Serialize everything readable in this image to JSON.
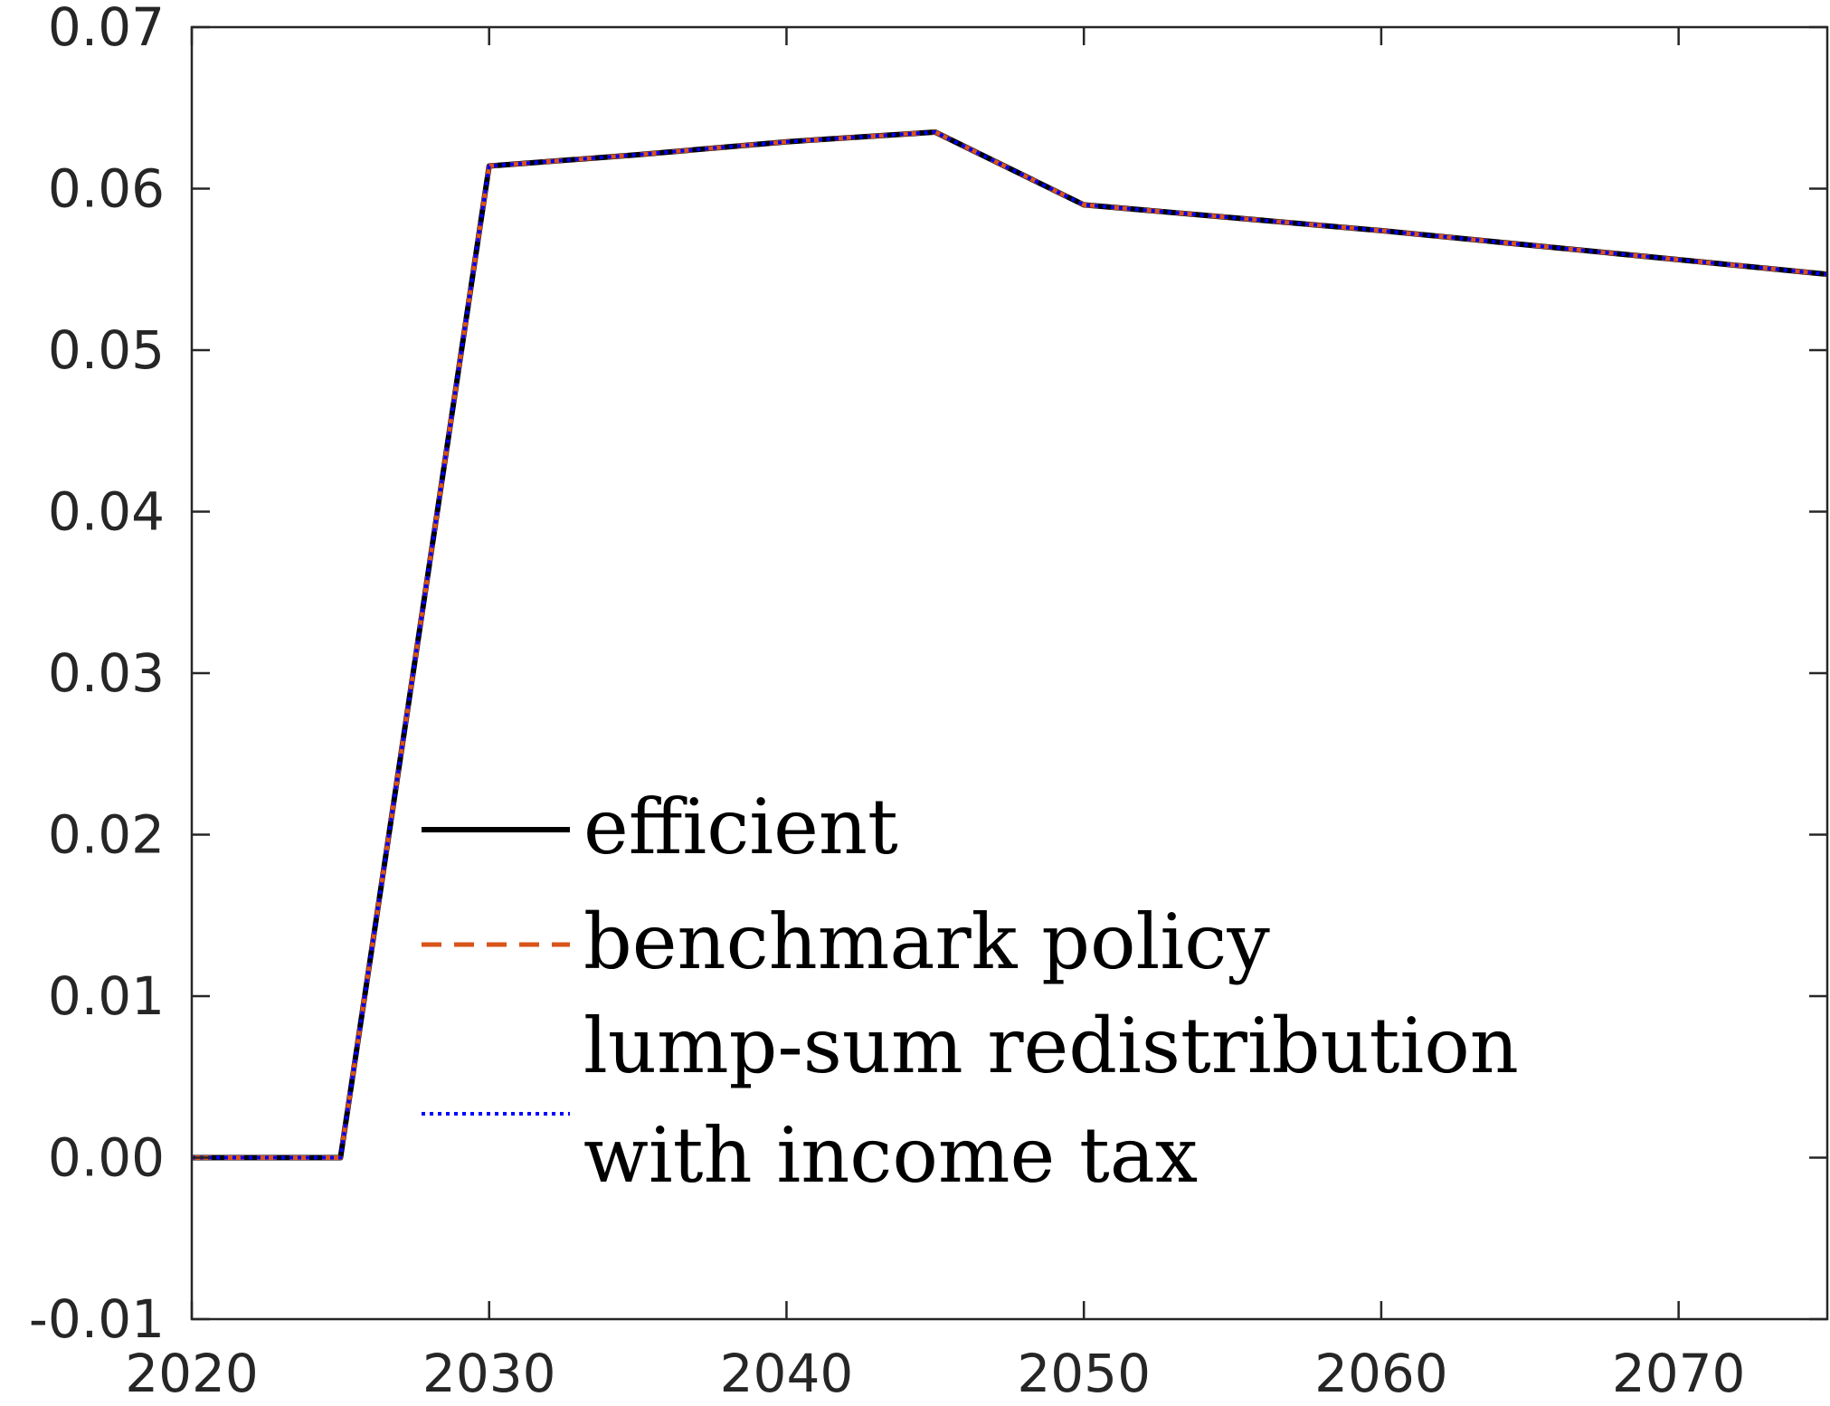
{
  "chart_data": {
    "type": "line",
    "title": "",
    "xlabel": "",
    "ylabel": "",
    "xlim": [
      2020,
      2075
    ],
    "ylim": [
      -0.01,
      0.07
    ],
    "xticks": [
      2020,
      2030,
      2040,
      2050,
      2060,
      2070
    ],
    "xtick_labels": [
      "2020",
      "2030",
      "2040",
      "2050",
      "2060",
      "2070"
    ],
    "yticks": [
      -0.01,
      0.0,
      0.01,
      0.02,
      0.03,
      0.04,
      0.05,
      0.06,
      0.07
    ],
    "ytick_labels": [
      "-0.01",
      "0.00",
      "0.01",
      "0.02",
      "0.03",
      "0.04",
      "0.05",
      "0.06",
      "0.07"
    ],
    "grid": false,
    "legend_position": "lower-center",
    "x": [
      2020,
      2025,
      2030,
      2035,
      2040,
      2045,
      2050,
      2055,
      2060,
      2065,
      2070,
      2075
    ],
    "series": [
      {
        "name": "efficient",
        "color": "#000000",
        "style": "solid",
        "values": [
          0.0,
          0.0,
          0.0614,
          0.0621,
          0.0629,
          0.0635,
          0.059,
          0.0582,
          0.0574,
          0.0565,
          0.0556,
          0.0547
        ]
      },
      {
        "name": "benchmark policy",
        "color": "#D95319",
        "style": "dashed",
        "values": [
          0.0,
          0.0,
          0.0614,
          0.0621,
          0.0629,
          0.0635,
          0.059,
          0.0582,
          0.0574,
          0.0565,
          0.0556,
          0.0547
        ]
      },
      {
        "name": "lump-sum redistribution\nwith income tax",
        "name_lines": [
          "lump-sum redistribution",
          "with income tax"
        ],
        "color": "#0000FF",
        "style": "dotted",
        "values": [
          0.0,
          0.0,
          0.0614,
          0.0621,
          0.0629,
          0.0635,
          0.059,
          0.0582,
          0.0574,
          0.0565,
          0.0556,
          0.0547
        ]
      }
    ]
  }
}
